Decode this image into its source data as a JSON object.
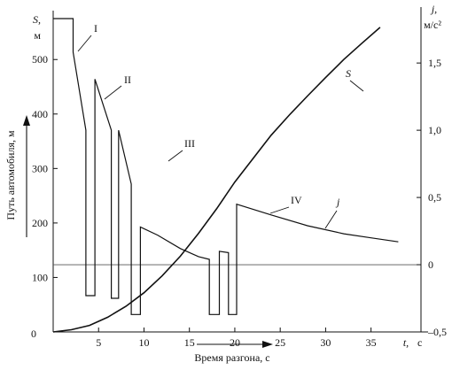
{
  "chart_data": {
    "type": "line",
    "left_axis": {
      "symbol": "S",
      "unit": "м",
      "label": "Путь автомобиля, м",
      "range": [
        0,
        580
      ],
      "ticks": [
        0,
        100,
        200,
        300,
        400,
        500
      ]
    },
    "right_axis": {
      "symbol": "j",
      "unit": "м/с²",
      "range": [
        -0.5,
        1.85
      ],
      "ticks": [
        {
          "v": -0.5,
          "t": "–0,5"
        },
        {
          "v": 0,
          "t": "0"
        },
        {
          "v": 0.5,
          "t": "0,5"
        },
        {
          "v": 1.0,
          "t": "1,0"
        },
        {
          "v": 1.5,
          "t": "1,5"
        }
      ]
    },
    "x_axis": {
      "symbol": "t",
      "unit": "с",
      "label": "Время разгона, с",
      "range": [
        0,
        40.5
      ],
      "ticks": [
        5,
        10,
        15,
        20,
        25,
        30,
        35
      ]
    },
    "origin_label": "0",
    "series": [
      {
        "name": "S",
        "axis": "left",
        "points": [
          [
            0,
            0
          ],
          [
            2,
            4
          ],
          [
            4,
            12
          ],
          [
            6,
            27
          ],
          [
            8,
            47
          ],
          [
            10,
            72
          ],
          [
            12,
            103
          ],
          [
            14,
            139
          ],
          [
            16,
            181
          ],
          [
            18,
            226
          ],
          [
            20,
            275
          ],
          [
            22,
            318
          ],
          [
            24,
            361
          ],
          [
            26,
            398
          ],
          [
            28,
            433
          ],
          [
            30,
            467
          ],
          [
            32,
            500
          ],
          [
            34,
            530
          ],
          [
            36,
            559
          ],
          [
            38,
            590
          ],
          [
            39.5,
            610
          ]
        ]
      },
      {
        "name": "j",
        "axis": "right",
        "points": [
          [
            0,
            1.83
          ],
          [
            2.2,
            1.83
          ],
          [
            2.2,
            1.58
          ],
          [
            3.6,
            1.0
          ],
          [
            3.6,
            -0.23
          ],
          [
            4.6,
            -0.23
          ],
          [
            4.6,
            1.38
          ],
          [
            6.4,
            1.0
          ],
          [
            6.4,
            -0.25
          ],
          [
            7.2,
            -0.25
          ],
          [
            7.2,
            1.0
          ],
          [
            8.6,
            0.6
          ],
          [
            8.6,
            -0.37
          ],
          [
            9.6,
            -0.37
          ],
          [
            9.6,
            0.28
          ],
          [
            11.5,
            0.22
          ],
          [
            14,
            0.12
          ],
          [
            16,
            0.06
          ],
          [
            17.2,
            0.04
          ],
          [
            17.2,
            -0.37
          ],
          [
            18.3,
            -0.37
          ],
          [
            18.3,
            0.1
          ],
          [
            19.3,
            0.09
          ],
          [
            19.3,
            -0.37
          ],
          [
            20.2,
            -0.37
          ],
          [
            20.2,
            0.45
          ],
          [
            24,
            0.37
          ],
          [
            28,
            0.29
          ],
          [
            32,
            0.23
          ],
          [
            35,
            0.2
          ],
          [
            38,
            0.17
          ]
        ]
      }
    ],
    "annotations": [
      {
        "text": "I"
      },
      {
        "text": "II"
      },
      {
        "text": "III"
      },
      {
        "text": "IV"
      },
      {
        "text": "S"
      },
      {
        "text": "j"
      }
    ]
  }
}
